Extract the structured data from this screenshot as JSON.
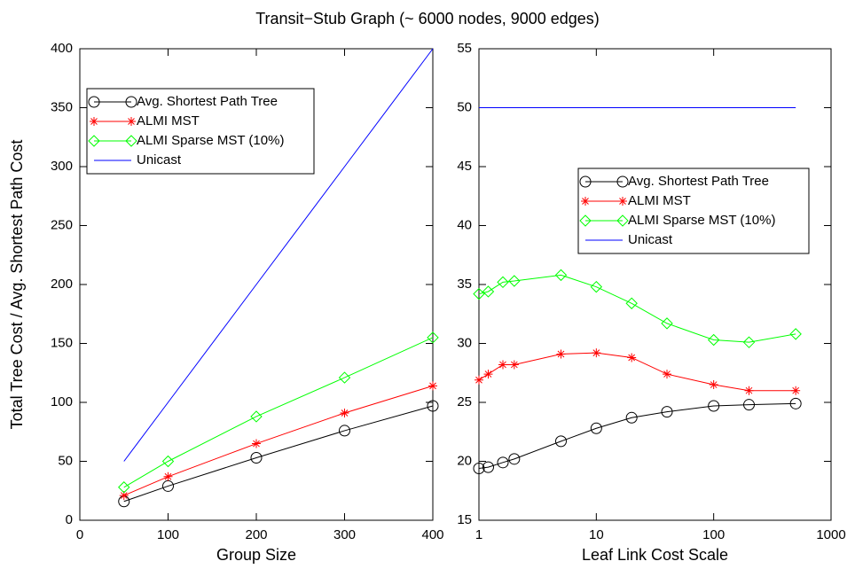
{
  "title": "Transit−Stub Graph (~ 6000 nodes, 9000 edges)",
  "chart_data": [
    {
      "type": "line",
      "xlabel": "Group Size",
      "ylabel": "Total Tree Cost / Avg. Shortest Path Cost",
      "x": [
        50,
        100,
        200,
        300,
        400
      ],
      "xlim": [
        0,
        400
      ],
      "xticks": [
        0,
        100,
        200,
        300,
        400
      ],
      "ylim": [
        0,
        400
      ],
      "yticks": [
        0,
        50,
        100,
        150,
        200,
        250,
        300,
        350,
        400
      ],
      "xscale": "linear",
      "legend": "upper left",
      "series": [
        {
          "name": "Avg. Shortest Path Tree",
          "color": "#000000",
          "marker": "circle",
          "values": [
            16,
            29,
            53,
            76,
            97
          ]
        },
        {
          "name": "ALMI MST",
          "color": "#ff0000",
          "marker": "star",
          "values": [
            21,
            37,
            65,
            91,
            114
          ]
        },
        {
          "name": "ALMI Sparse MST (10%)",
          "color": "#00ff00",
          "marker": "diamond",
          "values": [
            28,
            50,
            88,
            121,
            155
          ]
        },
        {
          "name": "Unicast",
          "color": "#0000ff",
          "marker": "none",
          "values": [
            50,
            100,
            200,
            300,
            400
          ]
        }
      ]
    },
    {
      "type": "line",
      "xlabel": "Leaf Link Cost Scale",
      "x": [
        1,
        1.2,
        1.6,
        2,
        5,
        10,
        20,
        40,
        100,
        200,
        500
      ],
      "xlim": [
        1,
        1000
      ],
      "xticks": [
        1,
        10,
        100,
        1000
      ],
      "ylim": [
        15,
        55
      ],
      "yticks": [
        15,
        20,
        25,
        30,
        35,
        40,
        45,
        50,
        55
      ],
      "xscale": "log",
      "legend": "center right",
      "series": [
        {
          "name": "Avg. Shortest Path Tree",
          "color": "#000000",
          "marker": "circle",
          "values": [
            19.4,
            19.5,
            19.9,
            20.2,
            21.7,
            22.8,
            23.7,
            24.2,
            24.7,
            24.8,
            24.9
          ]
        },
        {
          "name": "ALMI MST",
          "color": "#ff0000",
          "marker": "star",
          "values": [
            26.9,
            27.4,
            28.2,
            28.2,
            29.1,
            29.2,
            28.8,
            27.4,
            26.5,
            26.0,
            26.0
          ]
        },
        {
          "name": "ALMI Sparse MST (10%)",
          "color": "#00ff00",
          "marker": "diamond",
          "values": [
            34.2,
            34.4,
            35.2,
            35.3,
            35.8,
            34.8,
            33.4,
            31.7,
            30.3,
            30.1,
            30.8
          ]
        },
        {
          "name": "Unicast",
          "color": "#0000ff",
          "marker": "none",
          "values": [
            50,
            50,
            50,
            50,
            50,
            50,
            50,
            50,
            50,
            50,
            50
          ]
        }
      ]
    }
  ]
}
